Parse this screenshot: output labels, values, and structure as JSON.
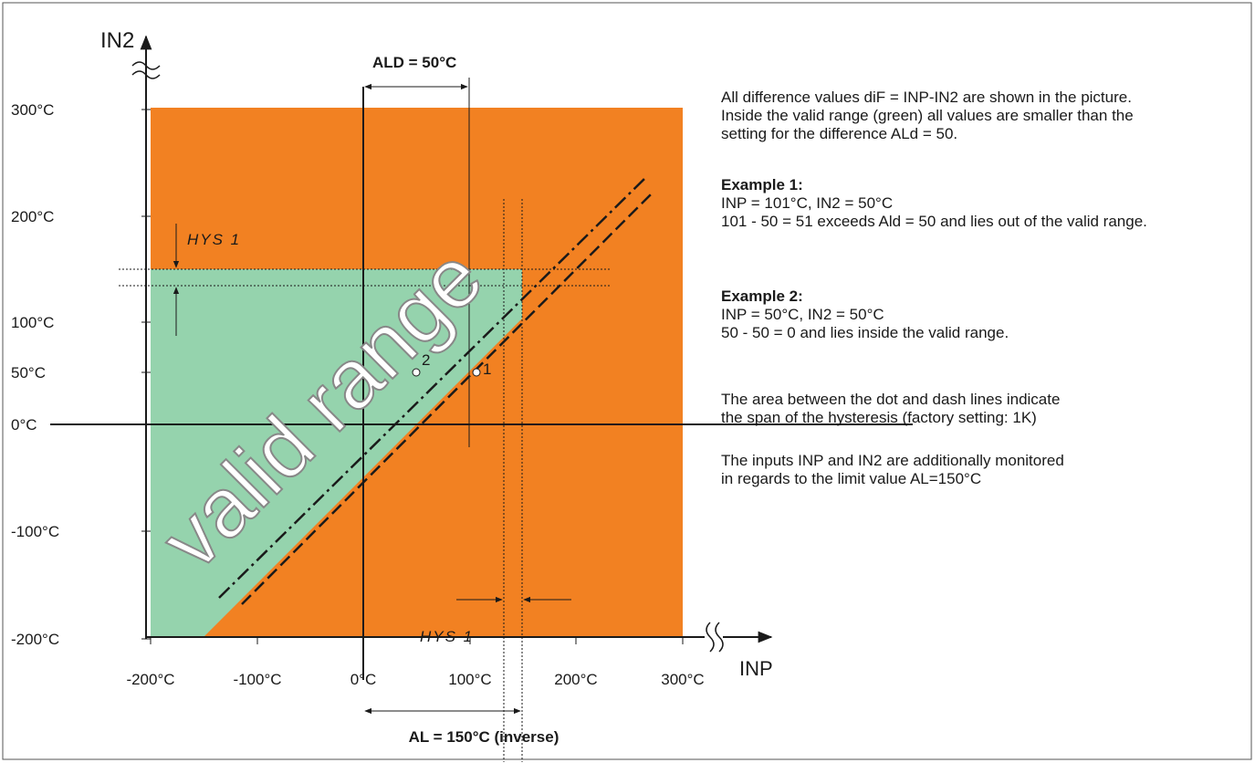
{
  "axes": {
    "y_label": "IN2",
    "x_label": "INP",
    "y_ticks": [
      "300°C",
      "200°C",
      "100°C",
      "50°C",
      "0°C",
      "-100°C",
      "-200°C"
    ],
    "x_ticks": [
      "-200°C",
      "-100°C",
      "0°C",
      "100°C",
      "200°C",
      "300°C"
    ]
  },
  "annotations": {
    "ald": "ALD = 50°C",
    "al": "AL = 150°C (inverse)",
    "hys_top": "HYS 1",
    "hys_bottom": "HYS 1",
    "valid_range": "valid range",
    "point1": "1",
    "point2": "2"
  },
  "notes": {
    "intro": [
      "All difference values diF = INP-IN2 are shown in the picture.",
      "Inside the valid range (green) all values are smaller than the",
      "setting for the difference ALd = 50."
    ],
    "example1": {
      "title": "Example 1:",
      "lines": [
        "INP = 101°C, IN2 = 50°C",
        "101 - 50  = 51 exceeds Ald = 50 and lies out of the valid range."
      ]
    },
    "example2": {
      "title": "Example 2:",
      "lines": [
        "INP = 50°C, IN2 = 50°C",
        "50 - 50  = 0  and lies inside the valid range."
      ]
    },
    "hysteresis": [
      "The area between the dot and dash lines indicate",
      "the span of the hysteresis (factory setting: 1K)"
    ],
    "limit": [
      "The inputs INP and IN2 are additionally monitored",
      "in regards to the limit value AL=150°C"
    ]
  }
}
